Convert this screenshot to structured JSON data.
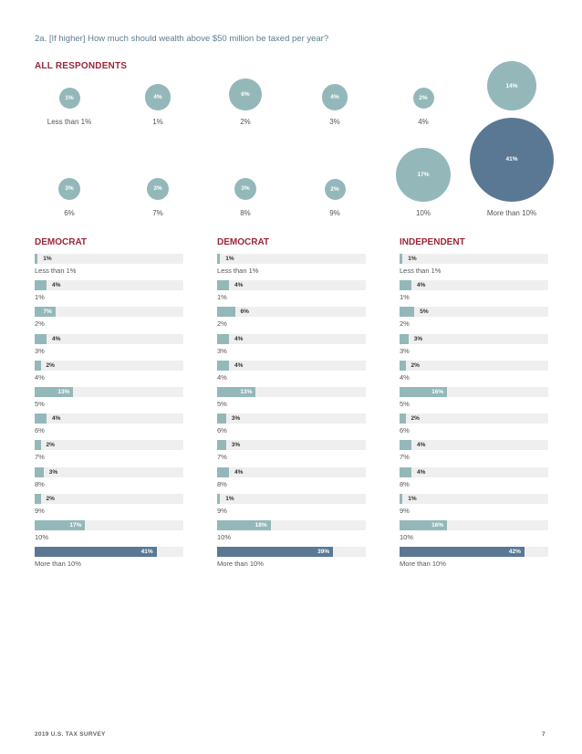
{
  "question": "2a.  [If higher] How much should wealth above $50 million be taxed per year?",
  "colors": {
    "bubble": "#94b8b9",
    "bubble_dark": "#5a7894",
    "bar": "#94b8b9",
    "bar_dark": "#5a7894",
    "accent": "#9c2638"
  },
  "footer": {
    "left": "2019 U.S. TAX SURVEY",
    "page": "7"
  },
  "chart_data": [
    {
      "type": "bubble",
      "title": "ALL RESPONDENTS",
      "categories": [
        "Less than 1%",
        "1%",
        "2%",
        "3%",
        "4%",
        "5%",
        "6%",
        "7%",
        "8%",
        "9%",
        "10%",
        "More than 10%"
      ],
      "values": [
        1,
        4,
        6,
        4,
        2,
        14,
        3,
        3,
        3,
        2,
        17,
        41
      ],
      "labels": [
        "1%",
        "4%",
        "6%",
        "4%",
        "2%",
        "14%",
        "3%",
        "3%",
        "3%",
        "2%",
        "17%",
        "41%"
      ]
    },
    {
      "type": "bar",
      "title": "DEMOCRAT",
      "categories": [
        "Less than 1%",
        "1%",
        "2%",
        "3%",
        "4%",
        "5%",
        "6%",
        "7%",
        "8%",
        "9%",
        "10%",
        "More than 10%"
      ],
      "values": [
        1,
        4,
        7,
        4,
        2,
        13,
        4,
        2,
        3,
        2,
        17,
        41
      ],
      "labels": [
        "1%",
        "4%",
        "7%",
        "4%",
        "2%",
        "13%",
        "4%",
        "2%",
        "3%",
        "2%",
        "17%",
        "41%"
      ],
      "xlim": [
        0,
        50
      ]
    },
    {
      "type": "bar",
      "title": "DEMOCRAT",
      "categories": [
        "Less than 1%",
        "1%",
        "2%",
        "3%",
        "4%",
        "5%",
        "6%",
        "7%",
        "8%",
        "9%",
        "10%",
        "More than 10%"
      ],
      "values": [
        1,
        4,
        6,
        4,
        4,
        13,
        3,
        3,
        4,
        1,
        18,
        39
      ],
      "labels": [
        "1%",
        "4%",
        "6%",
        "4%",
        "4%",
        "13%",
        "3%",
        "3%",
        "4%",
        "1%",
        "18%",
        "39%"
      ],
      "xlim": [
        0,
        50
      ]
    },
    {
      "type": "bar",
      "title": "INDEPENDENT",
      "categories": [
        "Less than 1%",
        "1%",
        "2%",
        "3%",
        "4%",
        "5%",
        "6%",
        "7%",
        "8%",
        "9%",
        "10%",
        "More than 10%"
      ],
      "values": [
        1,
        4,
        5,
        3,
        2,
        16,
        2,
        4,
        4,
        1,
        16,
        42
      ],
      "labels": [
        "1%",
        "4%",
        "5%",
        "3%",
        "2%",
        "16%",
        "2%",
        "4%",
        "4%",
        "1%",
        "16%",
        "42%"
      ],
      "xlim": [
        0,
        50
      ]
    }
  ]
}
